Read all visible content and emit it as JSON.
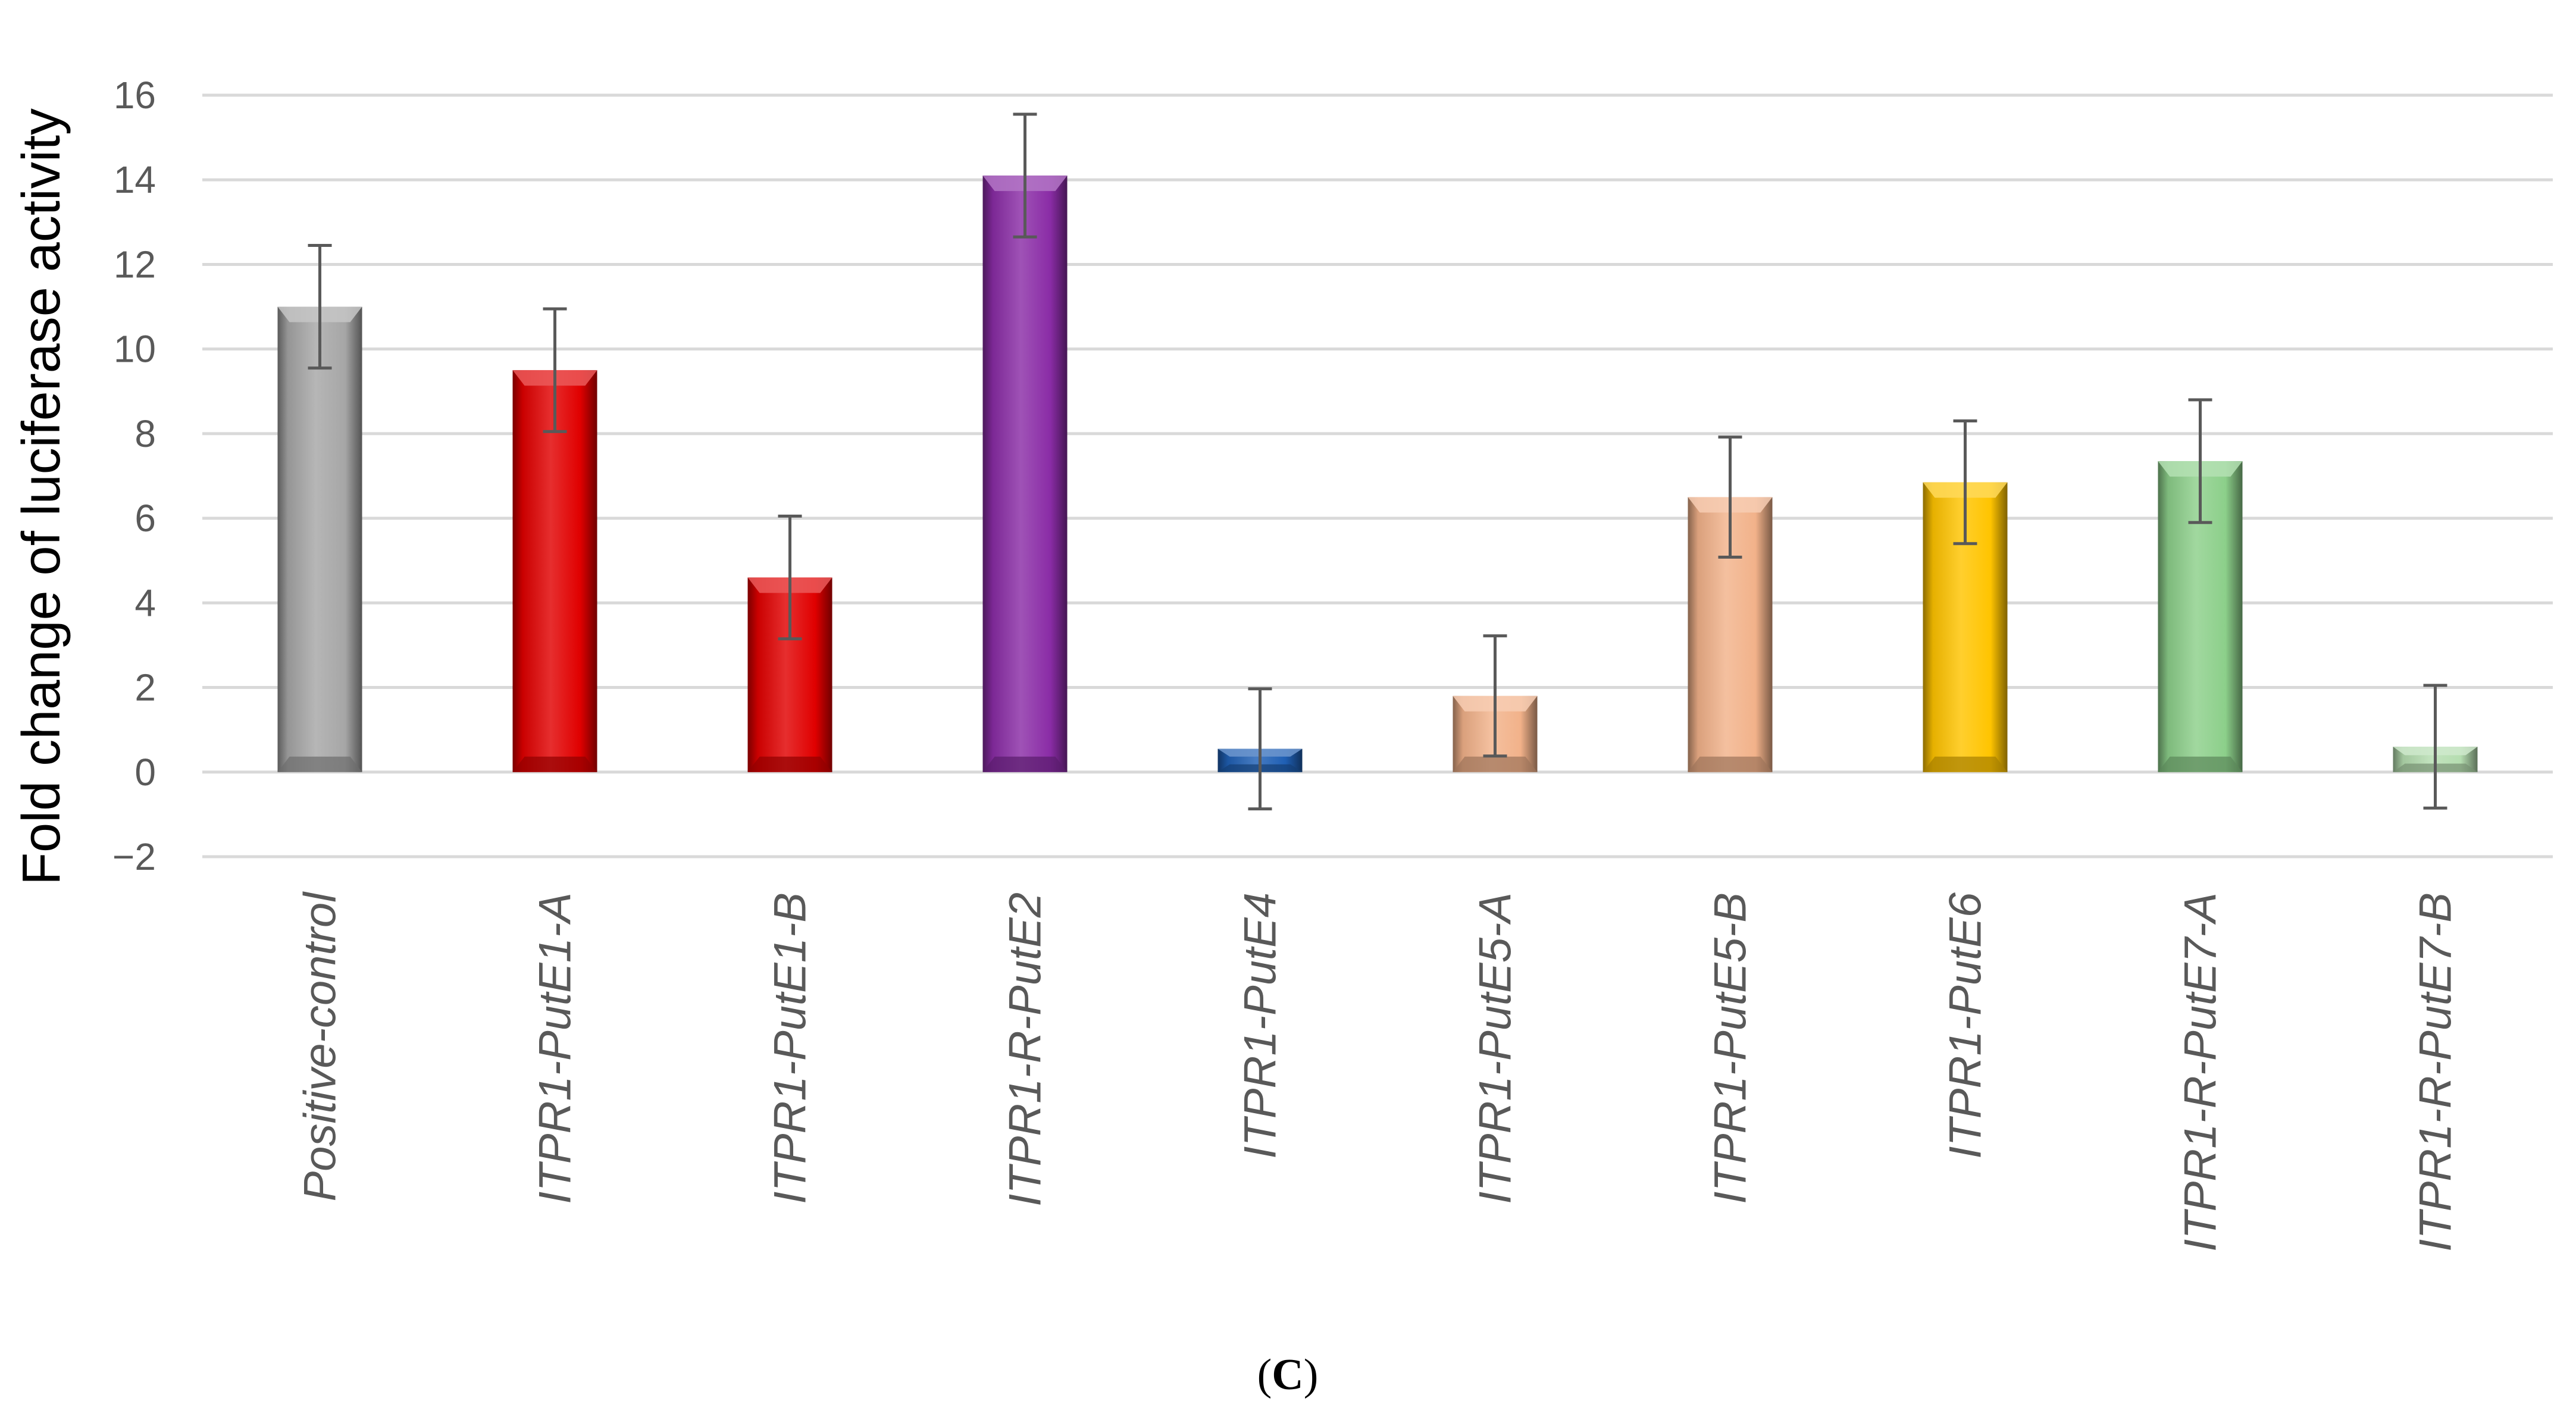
{
  "chart_data": {
    "type": "bar",
    "ylabel": "Fold change of luciferase activity",
    "ylim": [
      -2,
      16
    ],
    "yticks": [
      -2,
      0,
      2,
      4,
      6,
      8,
      10,
      12,
      14,
      16
    ],
    "ytick_labels": [
      "−2",
      "0",
      "2",
      "4",
      "6",
      "8",
      "10",
      "12",
      "14",
      "16"
    ],
    "grid": true,
    "legend": "none",
    "categories": [
      "Positive-control",
      "ITPR1-PutE1-A",
      "ITPR1-PutE1-B",
      "ITPR1-R-PutE2",
      "ITPR1-PutE4",
      "ITPR1-PutE5-A",
      "ITPR1-PutE5-B",
      "ITPR1-PutE6",
      "ITPR1-R-PutE7-A",
      "ITPR1-R-PutE7-B"
    ],
    "values": [
      11.0,
      9.5,
      4.6,
      14.1,
      0.55,
      1.8,
      6.5,
      6.85,
      7.35,
      0.6
    ],
    "errors": [
      1.45,
      1.45,
      1.45,
      1.45,
      1.42,
      1.42,
      1.42,
      1.45,
      1.45,
      1.45
    ],
    "colors": [
      "#a6a6a6",
      "#e00000",
      "#e00000",
      "#8a2ca6",
      "#1f5fb4",
      "#f2b28a",
      "#f2b28a",
      "#ffc400",
      "#8ccf8a",
      "#b5ddb0"
    ],
    "panel_label": {
      "open": "(",
      "letter": "C",
      "close": ")"
    }
  }
}
